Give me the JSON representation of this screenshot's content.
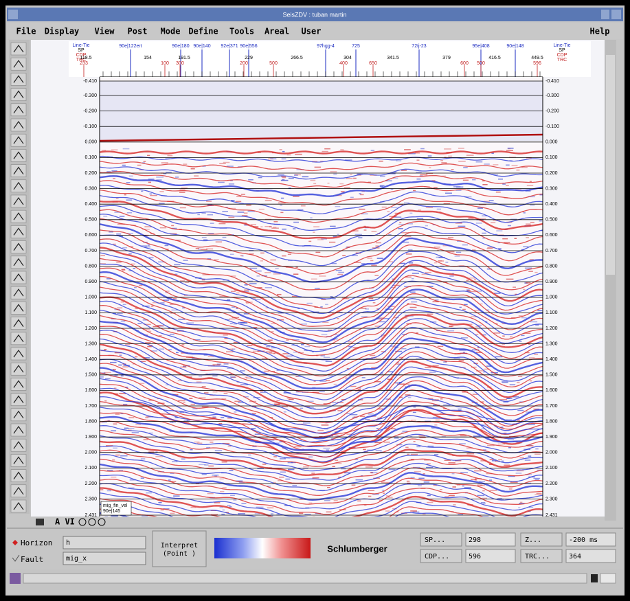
{
  "window": {
    "title": "SeisZDV : tuban martin"
  },
  "menu": [
    "File",
    "Display",
    "View",
    "Post",
    "Mode",
    "Define",
    "Tools",
    "Areal",
    "User"
  ],
  "help": "Help",
  "header": {
    "left": [
      "Line-Tie",
      "SP",
      "CDP",
      "TRC"
    ],
    "right": [
      "Line-Tie",
      "SP",
      "CDP",
      "TRC"
    ],
    "sp": [
      "118.5",
      "154",
      "191.5",
      "229",
      "266.5",
      "304",
      "341.5",
      "379",
      "416.5",
      "449.5"
    ],
    "wells": [
      "90e|122ert",
      "90e|180",
      "90e|140",
      "92e|371",
      "90e|556",
      "97hgg-4",
      "725",
      "72tj-23",
      "95e|408",
      "90e|148"
    ],
    "cdp": [
      "233",
      "100",
      "300",
      "200",
      "500",
      "400",
      "650",
      "500",
      "600",
      "596"
    ]
  },
  "time_axis": [
    "-0.410",
    "-0.300",
    "-0.200",
    "-0.100",
    "0.000",
    "0.100",
    "0.200",
    "0.300",
    "0.400",
    "0.500",
    "0.600",
    "0.700",
    "0.800",
    "0.900",
    "1.000",
    "1.100",
    "1.200",
    "1.300",
    "1.400",
    "1.500",
    "1.600",
    "1.700",
    "1.800",
    "1.900",
    "2.000",
    "2.100",
    "2.200",
    "2.300",
    "2.431"
  ],
  "corner_label": [
    "mig_fin_vel",
    "90e|145"
  ],
  "toolbar_text": "A VI",
  "bottom": {
    "horizon_label": "Horizon",
    "horizon_value": "h",
    "fault_label": "Fault",
    "fault_value": "mig_x",
    "mode": [
      "Interpret",
      "(Point )"
    ],
    "brand": "Schlumberger",
    "fields": [
      {
        "label": "SP...",
        "value": "298"
      },
      {
        "label": "Z...",
        "value": "-200 ms"
      },
      {
        "label": "CDP...",
        "value": "596"
      },
      {
        "label": "TRC...",
        "value": "364"
      }
    ]
  }
}
